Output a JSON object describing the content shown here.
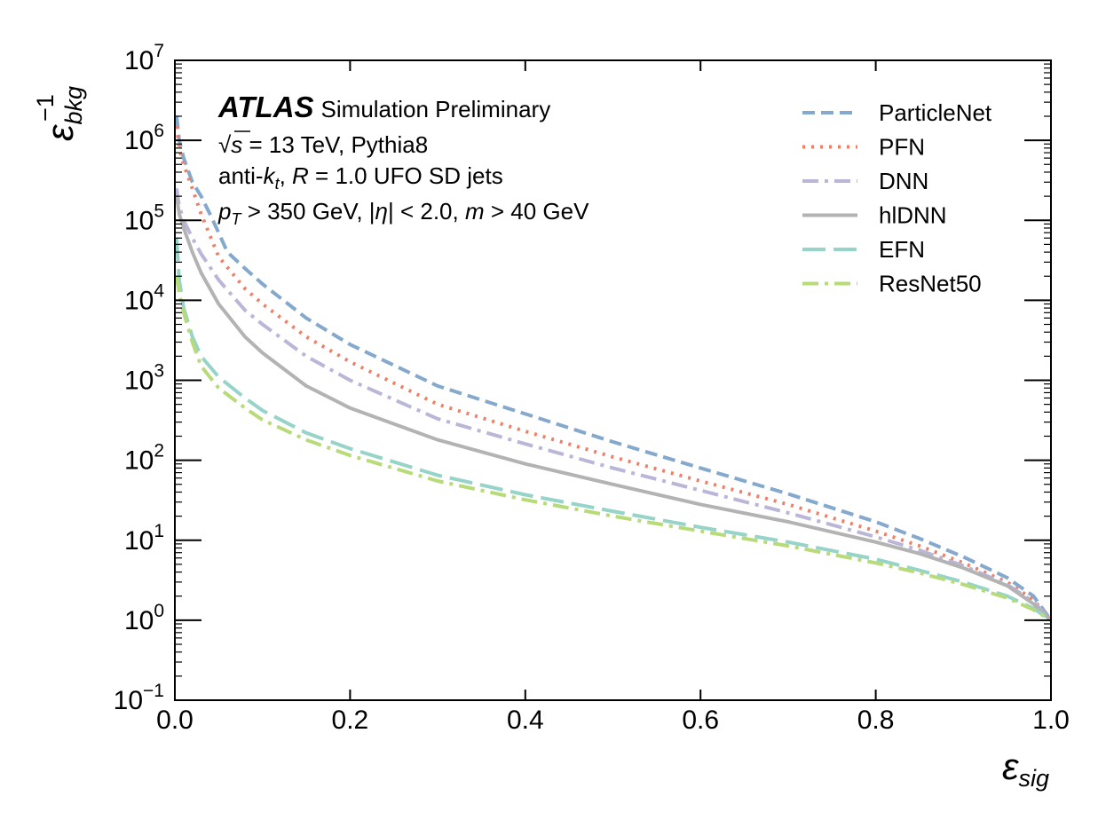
{
  "chart_data": {
    "type": "line",
    "x_scale": "linear",
    "y_scale": "log",
    "xlim": [
      0.0,
      1.0
    ],
    "ylim": [
      0.1,
      10000000
    ],
    "x_ticks": [
      "0.0",
      "0.2",
      "0.4",
      "0.6",
      "0.8",
      "1.0"
    ],
    "y_ticks": [
      {
        "base": "10",
        "exp": "−1"
      },
      {
        "base": "10",
        "exp": "0"
      },
      {
        "base": "10",
        "exp": "1"
      },
      {
        "base": "10",
        "exp": "2"
      },
      {
        "base": "10",
        "exp": "3"
      },
      {
        "base": "10",
        "exp": "4"
      },
      {
        "base": "10",
        "exp": "5"
      },
      {
        "base": "10",
        "exp": "6"
      },
      {
        "base": "10",
        "exp": "7"
      }
    ],
    "xlabel": {
      "symbol": "ε",
      "sub": "sig"
    },
    "ylabel": {
      "symbol": "ε",
      "sub": "bkg",
      "sup": "−1"
    },
    "grid": false,
    "legend_position": "top-right",
    "annotations": {
      "atlas": "ATLAS",
      "status": "Simulation Preliminary",
      "line1": {
        "sqrt": "√",
        "s": "s",
        "rest": " = 13 TeV, Pythia8"
      },
      "line2": {
        "a": "anti-",
        "k": "k",
        "t": "t",
        "b": ", ",
        "R": "R",
        "c": " = 1.0 UFO SD jets"
      },
      "line3": {
        "p": "p",
        "T": "T",
        "a": " > 350 GeV, |",
        "eta": "η",
        "b": "| < 2.0, ",
        "m": "m",
        "c": " > 40 GeV"
      }
    },
    "series": [
      {
        "name": "ParticleNet",
        "color": "#84a9cc",
        "dash": "dashed",
        "x": [
          0.002,
          0.005,
          0.01,
          0.02,
          0.03,
          0.04,
          0.05,
          0.06,
          0.08,
          0.1,
          0.15,
          0.2,
          0.3,
          0.4,
          0.5,
          0.6,
          0.7,
          0.8,
          0.85,
          0.9,
          0.95,
          0.98,
          1.0
        ],
        "y": [
          2000000,
          1000000,
          600000,
          300000,
          200000,
          120000,
          70000,
          40000,
          25000,
          16000,
          6000,
          2800,
          850,
          380,
          170,
          80,
          38,
          17,
          10.5,
          6.2,
          3.4,
          2.0,
          1.0
        ]
      },
      {
        "name": "PFN",
        "color": "#ee8068",
        "dash": "dotted",
        "x": [
          0.002,
          0.005,
          0.01,
          0.02,
          0.03,
          0.05,
          0.08,
          0.1,
          0.15,
          0.2,
          0.3,
          0.4,
          0.5,
          0.6,
          0.7,
          0.8,
          0.85,
          0.9,
          0.95,
          0.98,
          1.0
        ],
        "y": [
          1500000,
          800000,
          500000,
          250000,
          120000,
          35000,
          14000,
          9000,
          3500,
          1700,
          500,
          230,
          110,
          55,
          28,
          13,
          8.5,
          5.2,
          3.0,
          1.8,
          1.0
        ]
      },
      {
        "name": "DNN",
        "color": "#b9b6d8",
        "dash": "dashdot",
        "x": [
          0.002,
          0.005,
          0.01,
          0.02,
          0.03,
          0.05,
          0.08,
          0.1,
          0.15,
          0.2,
          0.3,
          0.4,
          0.5,
          0.6,
          0.7,
          0.8,
          0.85,
          0.9,
          0.95,
          0.98,
          1.0
        ],
        "y": [
          250000,
          150000,
          100000,
          60000,
          38000,
          18000,
          7500,
          5000,
          2000,
          1000,
          330,
          160,
          80,
          42,
          22,
          11,
          7.5,
          4.8,
          2.8,
          1.7,
          1.0
        ]
      },
      {
        "name": "hlDNN",
        "color": "#b3b3b3",
        "dash": "solid",
        "x": [
          0.002,
          0.005,
          0.01,
          0.02,
          0.03,
          0.05,
          0.08,
          0.1,
          0.15,
          0.2,
          0.3,
          0.4,
          0.5,
          0.6,
          0.7,
          0.8,
          0.85,
          0.9,
          0.95,
          0.98,
          1.0
        ],
        "y": [
          200000,
          120000,
          80000,
          40000,
          22000,
          9000,
          3500,
          2200,
          850,
          450,
          180,
          90,
          50,
          28,
          17,
          9.5,
          6.8,
          4.5,
          2.7,
          1.6,
          1.0
        ]
      },
      {
        "name": "EFN",
        "color": "#96d3c8",
        "dash": "longdash",
        "x": [
          0.002,
          0.005,
          0.01,
          0.02,
          0.03,
          0.05,
          0.08,
          0.1,
          0.15,
          0.2,
          0.3,
          0.4,
          0.5,
          0.6,
          0.7,
          0.8,
          0.85,
          0.9,
          0.95,
          0.98,
          1.0
        ],
        "y": [
          60000,
          18000,
          8000,
          3500,
          2000,
          1100,
          600,
          420,
          220,
          140,
          65,
          37,
          23,
          14.5,
          9.5,
          5.8,
          4.2,
          3.0,
          2.0,
          1.4,
          1.0
        ]
      },
      {
        "name": "ResNet50",
        "color": "#b7db78",
        "dash": "dashdot",
        "x": [
          0.002,
          0.005,
          0.01,
          0.02,
          0.03,
          0.05,
          0.08,
          0.1,
          0.15,
          0.2,
          0.3,
          0.4,
          0.5,
          0.6,
          0.7,
          0.8,
          0.85,
          0.9,
          0.95,
          0.98,
          1.0
        ],
        "y": [
          20000,
          12000,
          7000,
          3000,
          1500,
          800,
          450,
          320,
          180,
          115,
          55,
          32,
          20,
          13,
          8.5,
          5.2,
          3.9,
          2.8,
          1.9,
          1.35,
          1.0
        ]
      }
    ]
  }
}
